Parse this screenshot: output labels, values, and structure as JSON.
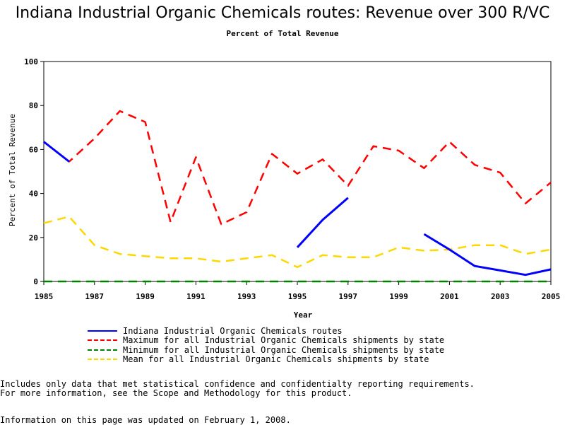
{
  "chart_data": {
    "type": "line",
    "title": "Indiana Industrial Organic Chemicals routes: Revenue over 300 R/VC",
    "subtitle": "Percent of Total Revenue",
    "xlabel": "Year",
    "ylabel": "Percent of Total Revenue",
    "xlim": [
      1985,
      2005
    ],
    "ylim": [
      0,
      100
    ],
    "x_ticks": [
      "1985",
      "1987",
      "1989",
      "1991",
      "1993",
      "1995",
      "1997",
      "1999",
      "2001",
      "2003",
      "2005"
    ],
    "y_ticks": [
      "0",
      "20",
      "40",
      "60",
      "80",
      "100"
    ],
    "grid": false,
    "legend_position": "bottom",
    "x": [
      1985,
      1986,
      1987,
      1988,
      1989,
      1990,
      1991,
      1992,
      1993,
      1994,
      1995,
      1996,
      1997,
      1998,
      1999,
      2000,
      2001,
      2002,
      2003,
      2004,
      2005
    ],
    "series": [
      {
        "name": "Indiana Industrial Organic Chemicals routes",
        "color": "#0000ff",
        "style": "solid",
        "values": [
          63.5,
          54.5,
          null,
          null,
          null,
          null,
          null,
          null,
          null,
          null,
          15.5,
          28,
          38,
          null,
          null,
          21.5,
          14.5,
          7,
          5,
          3,
          5.5
        ]
      },
      {
        "name": "Maximum for all Industrial Organic Chemicals shipments by state",
        "color": "#ff0000",
        "style": "dashed",
        "values": [
          63.5,
          54.5,
          65,
          77.5,
          72.5,
          27,
          56.5,
          26,
          31.5,
          58,
          49,
          55.5,
          43.5,
          61.5,
          59.5,
          51.5,
          63.5,
          53,
          49.5,
          35.5,
          45
        ]
      },
      {
        "name": "Minimum for all Industrial Organic Chemicals shipments by state",
        "color": "#008000",
        "style": "dashed",
        "values": [
          0,
          0,
          0,
          0,
          0,
          0,
          0,
          0,
          0,
          0,
          0,
          0,
          0,
          0,
          0,
          0,
          0,
          0,
          0,
          0,
          0
        ]
      },
      {
        "name": "Mean for all Industrial Organic Chemicals shipments by state",
        "color": "#ffd700",
        "style": "dashed",
        "values": [
          26.5,
          29.5,
          16.5,
          12.5,
          11.5,
          10.5,
          10.5,
          9,
          10.5,
          12,
          6.5,
          12,
          11,
          11,
          15.5,
          14,
          14.5,
          16.5,
          16.5,
          12.5,
          14.5
        ]
      }
    ]
  },
  "notes": {
    "line1": "Includes only data that met statistical confidence and confidentialty reporting requirements.",
    "line2": "For more information, see the Scope and Methodology for this product.",
    "updated": "Information on this page was updated on February 1, 2008."
  }
}
